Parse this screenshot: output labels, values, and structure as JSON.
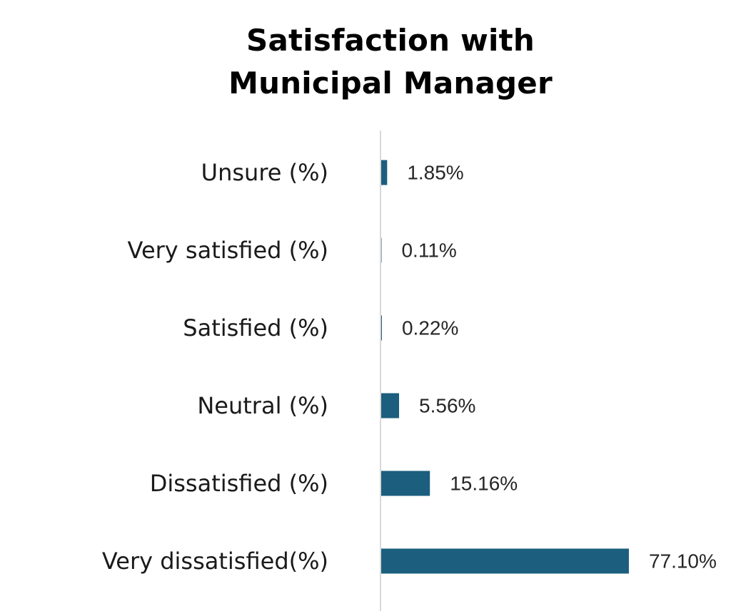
{
  "chart_data": {
    "type": "bar",
    "orientation": "horizontal",
    "title": [
      "Satisfaction with",
      "Municipal Manager"
    ],
    "categories": [
      "Unsure (%)",
      "Very satisfied (%)",
      "Satisfied (%)",
      "Neutral (%)",
      "Dissatisfied (%)",
      "Very dissatisfied(%)"
    ],
    "values": [
      1.85,
      0.11,
      0.22,
      5.56,
      15.16,
      77.1
    ],
    "data_labels": [
      "1.85%",
      "0.11%",
      "0.22%",
      "5.56%",
      "15.16%",
      "77.10%"
    ],
    "xlim": [
      0,
      80
    ],
    "bar_color": "#1b5e7e",
    "axis_color": "#d9d9d9",
    "grid": false,
    "legend": "none"
  }
}
